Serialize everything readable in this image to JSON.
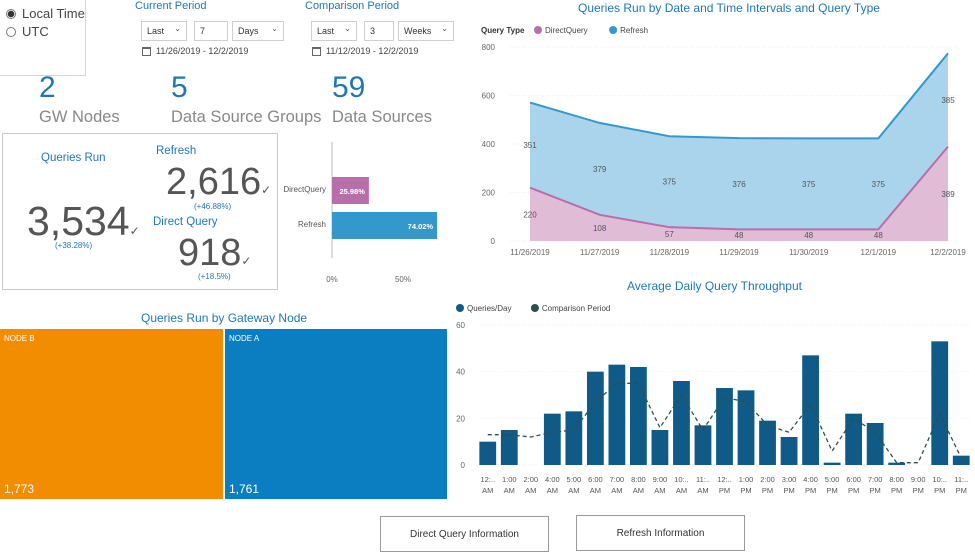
{
  "timezone": {
    "options": [
      {
        "label": "Local Time",
        "selected": true
      },
      {
        "label": "UTC",
        "selected": false
      }
    ]
  },
  "current_period": {
    "title": "Current Period",
    "mode": "Last",
    "count": "7",
    "unit": "Days",
    "range": "11/26/2019 - 12/2/2019"
  },
  "comparison_period": {
    "title": "Comparison Period",
    "mode": "Last",
    "count": "3",
    "unit": "Weeks",
    "range": "11/12/2019 - 12/2/2019"
  },
  "kpis": [
    {
      "value": "2",
      "label": "GW Nodes"
    },
    {
      "value": "5",
      "label": "Data Source Groups"
    },
    {
      "value": "59",
      "label": "Data Sources"
    }
  ],
  "queries_card": {
    "total_title": "Queries Run",
    "total_value": "3,534",
    "total_change": "(+38.28%)",
    "refresh_title": "Refresh",
    "refresh_value": "2,616",
    "refresh_change": "(+46.88%)",
    "direct_title": "Direct Query",
    "direct_value": "918",
    "direct_change": "(+18.5%)"
  },
  "chart_data": [
    {
      "id": "query-type-share",
      "type": "bar",
      "orientation": "horizontal",
      "categories": [
        "DirectQuery",
        "Refresh"
      ],
      "values": [
        25.98,
        74.02
      ],
      "value_labels": [
        "25.98%",
        "74.02%"
      ],
      "tick_labels": [
        "0%",
        "50%"
      ],
      "xlim": [
        0,
        100
      ],
      "colors": [
        "#b86fa9",
        "#3399cc"
      ]
    },
    {
      "id": "queries-by-date",
      "type": "area",
      "title": "Queries Run by Date and Time Intervals and Query Type",
      "legend_title": "Query Type",
      "categories": [
        "11/26/2019",
        "11/27/2019",
        "11/28/2019",
        "11/29/2019",
        "11/30/2019",
        "12/1/2019",
        "12/2/2019"
      ],
      "series": [
        {
          "name": "DirectQuery",
          "color": "#b86fa9",
          "values": [
            220,
            108,
            57,
            48,
            48,
            48,
            389
          ],
          "labels": [
            "220",
            "108",
            "57",
            "48",
            "48",
            "48",
            "389"
          ]
        },
        {
          "name": "Refresh",
          "color": "#3399cc",
          "values": [
            351,
            379,
            375,
            376,
            375,
            375,
            385
          ],
          "labels": [
            "351",
            "379",
            "375",
            "376",
            "375",
            "375",
            "385"
          ]
        }
      ],
      "stacked": true,
      "ylim": [
        0,
        800
      ],
      "yticks": [
        "0",
        "200",
        "400",
        "600",
        "800"
      ]
    },
    {
      "id": "daily-throughput",
      "type": "bar",
      "title": "Average Daily Query Throughput",
      "categories": [
        [
          "12:..",
          "AM"
        ],
        [
          "1:00",
          "AM"
        ],
        [
          "2:00",
          "AM"
        ],
        [
          "4:00",
          "AM"
        ],
        [
          "5:00",
          "AM"
        ],
        [
          "6:00",
          "AM"
        ],
        [
          "7:00",
          "AM"
        ],
        [
          "8:00",
          "AM"
        ],
        [
          "9:00",
          "AM"
        ],
        [
          "10:..",
          "AM"
        ],
        [
          "11:..",
          "AM"
        ],
        [
          "12:..",
          "PM"
        ],
        [
          "1:00",
          "PM"
        ],
        [
          "2:00",
          "PM"
        ],
        [
          "3:00",
          "PM"
        ],
        [
          "4:00",
          "PM"
        ],
        [
          "5:00",
          "PM"
        ],
        [
          "6:00",
          "PM"
        ],
        [
          "7:00",
          "PM"
        ],
        [
          "8:00",
          "PM"
        ],
        [
          "9:00",
          "PM"
        ],
        [
          "10:..",
          "PM"
        ],
        [
          "11:..",
          "PM"
        ]
      ],
      "series": [
        {
          "name": "Queries/Day",
          "color": "#0f5a87",
          "values": [
            10,
            15,
            0,
            22,
            23,
            40,
            43,
            42,
            15,
            36,
            17,
            33,
            32,
            19,
            12,
            47,
            1,
            22,
            18,
            1,
            0,
            53,
            4
          ]
        },
        {
          "name": "Comparison Period",
          "color": "#2f4f4f",
          "line": "dashed",
          "values": [
            13,
            13,
            12,
            14,
            15,
            27,
            35,
            35,
            16,
            30,
            15,
            29,
            27,
            17,
            14,
            26,
            6,
            20,
            14,
            1,
            1,
            22,
            3
          ]
        }
      ],
      "ylim": [
        0,
        60
      ],
      "yticks": [
        "0",
        "20",
        "40",
        "60"
      ]
    },
    {
      "id": "gateway-nodes",
      "type": "treemap",
      "title": "Queries Run by Gateway Node",
      "categories": [
        "NODE B",
        "NODE A"
      ],
      "values": [
        1773,
        1761
      ],
      "value_labels": [
        "1,773",
        "1,761"
      ],
      "colors": [
        "#f28c00",
        "#0b7ec2"
      ]
    }
  ],
  "buttons": {
    "direct_query": "Direct Query Information",
    "refresh": "Refresh Information"
  }
}
